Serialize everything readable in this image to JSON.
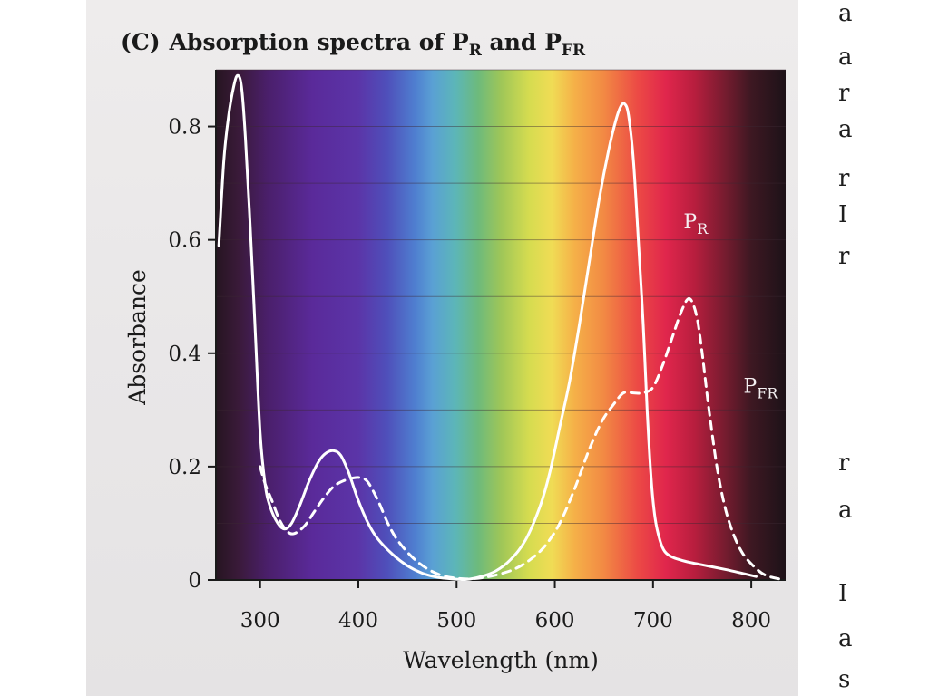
{
  "chart_data": {
    "type": "line",
    "panel_label": "(C)",
    "title": "Absorption spectra of P",
    "title_sub_1": "R",
    "title_mid": " and P",
    "title_sub_2": "FR",
    "xlabel": "Wavelength (nm)",
    "ylabel": "Absorbance",
    "xlim": [
      255,
      835
    ],
    "ylim": [
      0,
      0.9
    ],
    "x_ticks": [
      300,
      400,
      500,
      600,
      700,
      800
    ],
    "x_tick_labels": [
      "300",
      "400",
      "500",
      "600",
      "700",
      "800"
    ],
    "y_ticks": [
      0,
      0.2,
      0.4,
      0.6,
      0.8
    ],
    "y_tick_labels": [
      "0",
      "0.2",
      "0.4",
      "0.6",
      "0.8"
    ],
    "grid": true,
    "background": "visible-spectrum gradient (violet → blue → green → yellow → orange → red → dark)",
    "series": [
      {
        "name": "P",
        "name_sub": "R",
        "style": "solid",
        "color": "#ffffff",
        "label_at": [
          731,
          0.62
        ],
        "points": [
          [
            258,
            0.59
          ],
          [
            263,
            0.74
          ],
          [
            268,
            0.82
          ],
          [
            273,
            0.87
          ],
          [
            277,
            0.89
          ],
          [
            281,
            0.87
          ],
          [
            285,
            0.78
          ],
          [
            290,
            0.62
          ],
          [
            295,
            0.44
          ],
          [
            300,
            0.26
          ],
          [
            305,
            0.17
          ],
          [
            310,
            0.13
          ],
          [
            318,
            0.1
          ],
          [
            325,
            0.09
          ],
          [
            332,
            0.1
          ],
          [
            340,
            0.13
          ],
          [
            350,
            0.175
          ],
          [
            360,
            0.21
          ],
          [
            368,
            0.225
          ],
          [
            375,
            0.228
          ],
          [
            382,
            0.22
          ],
          [
            390,
            0.19
          ],
          [
            400,
            0.14
          ],
          [
            410,
            0.1
          ],
          [
            420,
            0.072
          ],
          [
            435,
            0.045
          ],
          [
            450,
            0.025
          ],
          [
            465,
            0.012
          ],
          [
            480,
            0.005
          ],
          [
            495,
            0.002
          ],
          [
            510,
            0.001
          ],
          [
            525,
            0.006
          ],
          [
            540,
            0.016
          ],
          [
            555,
            0.036
          ],
          [
            570,
            0.07
          ],
          [
            585,
            0.13
          ],
          [
            595,
            0.19
          ],
          [
            605,
            0.27
          ],
          [
            615,
            0.35
          ],
          [
            625,
            0.45
          ],
          [
            635,
            0.56
          ],
          [
            645,
            0.67
          ],
          [
            655,
            0.76
          ],
          [
            662,
            0.81
          ],
          [
            667,
            0.835
          ],
          [
            671,
            0.84
          ],
          [
            675,
            0.82
          ],
          [
            680,
            0.74
          ],
          [
            685,
            0.6
          ],
          [
            690,
            0.45
          ],
          [
            694,
            0.3
          ],
          [
            698,
            0.18
          ],
          [
            702,
            0.11
          ],
          [
            707,
            0.07
          ],
          [
            712,
            0.05
          ],
          [
            720,
            0.04
          ],
          [
            735,
            0.032
          ],
          [
            755,
            0.025
          ],
          [
            775,
            0.018
          ],
          [
            795,
            0.01
          ],
          [
            805,
            0.006
          ]
        ]
      },
      {
        "name": "P",
        "name_sub": "FR",
        "style": "dashed",
        "color": "#ffffff",
        "label_at": [
          792,
          0.33
        ],
        "points": [
          [
            300,
            0.2
          ],
          [
            305,
            0.17
          ],
          [
            312,
            0.14
          ],
          [
            320,
            0.105
          ],
          [
            328,
            0.085
          ],
          [
            335,
            0.082
          ],
          [
            345,
            0.095
          ],
          [
            355,
            0.12
          ],
          [
            365,
            0.145
          ],
          [
            375,
            0.165
          ],
          [
            385,
            0.175
          ],
          [
            395,
            0.18
          ],
          [
            403,
            0.18
          ],
          [
            410,
            0.172
          ],
          [
            420,
            0.14
          ],
          [
            430,
            0.1
          ],
          [
            440,
            0.07
          ],
          [
            455,
            0.04
          ],
          [
            470,
            0.02
          ],
          [
            485,
            0.008
          ],
          [
            500,
            0.003
          ],
          [
            515,
            0.002
          ],
          [
            530,
            0.005
          ],
          [
            545,
            0.011
          ],
          [
            560,
            0.02
          ],
          [
            575,
            0.036
          ],
          [
            590,
            0.06
          ],
          [
            605,
            0.1
          ],
          [
            620,
            0.16
          ],
          [
            635,
            0.23
          ],
          [
            648,
            0.28
          ],
          [
            660,
            0.31
          ],
          [
            670,
            0.33
          ],
          [
            680,
            0.33
          ],
          [
            690,
            0.33
          ],
          [
            700,
            0.34
          ],
          [
            710,
            0.38
          ],
          [
            720,
            0.43
          ],
          [
            728,
            0.47
          ],
          [
            735,
            0.495
          ],
          [
            740,
            0.49
          ],
          [
            745,
            0.46
          ],
          [
            750,
            0.4
          ],
          [
            757,
            0.3
          ],
          [
            765,
            0.2
          ],
          [
            773,
            0.13
          ],
          [
            782,
            0.08
          ],
          [
            792,
            0.045
          ],
          [
            805,
            0.02
          ],
          [
            815,
            0.008
          ],
          [
            828,
            0.002
          ]
        ]
      }
    ]
  },
  "colors": {
    "page_background": "#ebe9ea",
    "text": "#1a1a1a",
    "curve": "#ffffff"
  }
}
